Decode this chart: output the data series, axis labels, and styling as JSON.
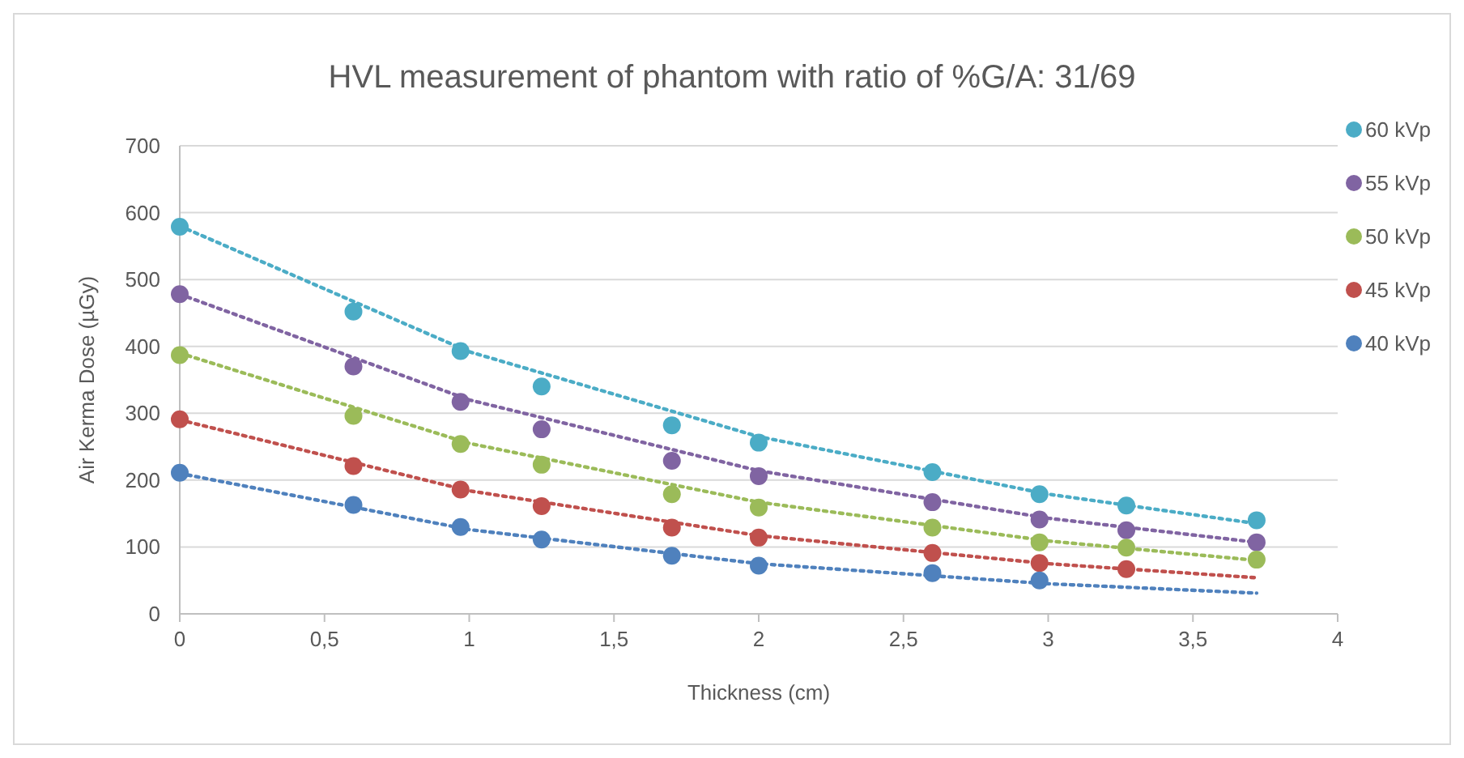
{
  "chart_data": {
    "type": "scatter",
    "title": "HVL measurement of phantom with ratio of %G/A: 31/69",
    "xlabel": "Thickness (cm)",
    "ylabel": "Air Kerma Dose (µGy)",
    "x": [
      0,
      0.6,
      0.97,
      1.25,
      1.7,
      2.0,
      2.6,
      2.97,
      3.27,
      3.72
    ],
    "xlim": [
      0,
      4
    ],
    "xticks": [
      0,
      {
        "value": 0.5,
        "label": "0,5"
      },
      1,
      {
        "value": 1.5,
        "label": "1,5"
      },
      2,
      {
        "value": 2.5,
        "label": "2,5"
      },
      3,
      {
        "value": 3.5,
        "label": "3,5"
      },
      4
    ],
    "ylim": [
      0,
      700
    ],
    "yticks": [
      0,
      100,
      200,
      300,
      400,
      500,
      600,
      700
    ],
    "grid": "y",
    "legend": "right",
    "marker": "circle",
    "series": [
      {
        "name": "60 kVp",
        "color": "#4bacc6",
        "values": [
          579,
          452,
          393,
          340,
          282,
          256,
          212,
          179,
          162,
          140
        ]
      },
      {
        "name": "55 kVp",
        "color": "#8064a2",
        "values": [
          478,
          370,
          317,
          276,
          229,
          206,
          167,
          141,
          125,
          107
        ]
      },
      {
        "name": "50 kVp",
        "color": "#9bbb59",
        "values": [
          387,
          296,
          254,
          223,
          179,
          159,
          129,
          107,
          99,
          81
        ]
      },
      {
        "name": "45 kVp",
        "color": "#c0504d",
        "values": [
          291,
          221,
          186,
          161,
          129,
          114,
          91,
          76,
          67,
          null
        ]
      },
      {
        "name": "40 kVp",
        "color": "#4f81bd",
        "values": [
          211,
          163,
          130,
          111,
          87,
          72,
          61,
          50,
          null,
          null
        ]
      },
      {
        "type": "line",
        "color": "#4bacc6",
        "x": [
          0,
          1,
          2,
          3,
          3.72
        ],
        "values": [
          580,
          392,
          265,
          179,
          135
        ],
        "marker": "none",
        "line_style": "dotted"
      },
      {
        "type": "line",
        "color": "#8064a2",
        "x": [
          0,
          1,
          2,
          3,
          3.72
        ],
        "values": [
          478,
          320,
          214,
          143,
          107
        ],
        "marker": "none",
        "line_style": "dotted"
      },
      {
        "type": "line",
        "color": "#9bbb59",
        "x": [
          0,
          1,
          2,
          3,
          3.72
        ],
        "values": [
          390,
          255,
          167,
          109,
          80
        ],
        "marker": "none",
        "line_style": "dotted"
      },
      {
        "type": "line",
        "color": "#c0504d",
        "x": [
          0,
          1,
          2,
          3,
          3.72
        ],
        "values": [
          290,
          184,
          117,
          75,
          54
        ],
        "marker": "none",
        "line_style": "dotted"
      },
      {
        "type": "line",
        "color": "#4f81bd",
        "x": [
          0,
          1,
          2,
          3,
          3.72
        ],
        "values": [
          210,
          126,
          75,
          45,
          31
        ],
        "marker": "none",
        "line_style": "dotted"
      }
    ]
  }
}
